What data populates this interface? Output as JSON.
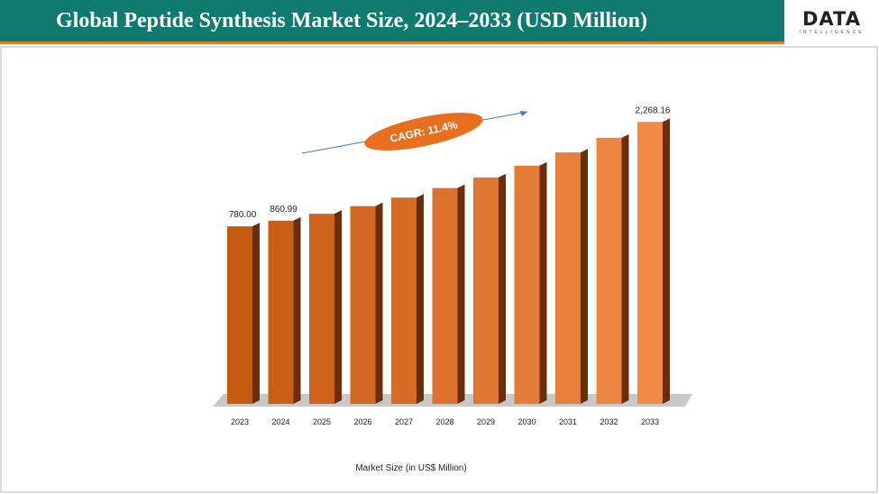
{
  "header": {
    "title": "Global Peptide Synthesis Market Size, 2024–2033 (USD Million)",
    "logo": "DATA",
    "logo_sub": "INTELLIGENCE"
  },
  "chart_data": {
    "type": "bar3d",
    "categories": [
      "2023",
      "2024",
      "2025",
      "2026",
      "2027",
      "2028",
      "2029",
      "2030",
      "2031",
      "2032",
      "2033"
    ],
    "values": [
      780.0,
      860.99,
      959,
      1068,
      1190,
      1326,
      1477,
      1645,
      1833,
      2042,
      2268.16
    ],
    "value_labels": [
      "780.00",
      "860.99",
      null,
      null,
      null,
      null,
      null,
      null,
      null,
      null,
      "2,268.16"
    ],
    "colors": [
      "#c55a11",
      "#f08a45"
    ],
    "ylim": [
      -1750,
      2400
    ],
    "annotation": "CAGR: 11.4%",
    "x_label": "Market Size (in US$ Million)"
  }
}
